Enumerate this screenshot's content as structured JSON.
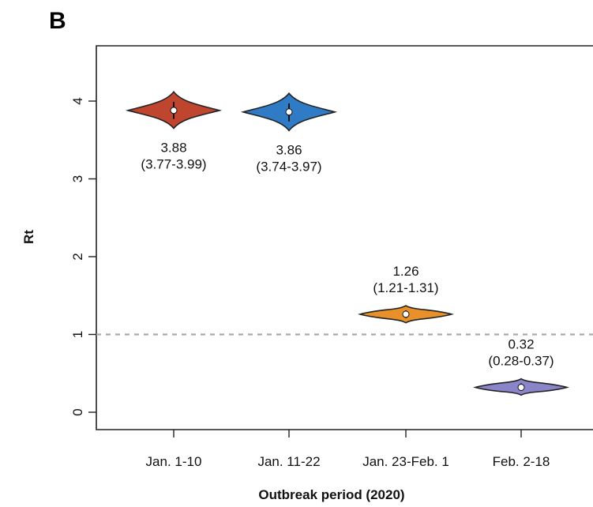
{
  "panel_label": "B",
  "chart_data": {
    "type": "violin",
    "xlabel": "Outbreak period (2020)",
    "ylabel": "Rt",
    "ylim": [
      -0.2,
      4.7
    ],
    "yticks": [
      0,
      1,
      2,
      3,
      4
    ],
    "reference_line": {
      "y": 1,
      "style": "dashed",
      "color": "#aaaaaa"
    },
    "grid": false,
    "categories": [
      "Jan. 1-10",
      "Jan. 11-22",
      "Jan. 23-Feb. 1",
      "Feb. 2-18"
    ],
    "series": [
      {
        "category": "Jan. 1-10",
        "median": 3.88,
        "ci": [
          3.77,
          3.99
        ],
        "label": "3.88",
        "ci_label": "(3.77-3.99)",
        "color": "#c0452e",
        "range": [
          3.65,
          4.12
        ]
      },
      {
        "category": "Jan. 11-22",
        "median": 3.86,
        "ci": [
          3.74,
          3.97
        ],
        "label": "3.86",
        "ci_label": "(3.74-3.97)",
        "color": "#2f7bc6",
        "range": [
          3.62,
          4.1
        ]
      },
      {
        "category": "Jan. 23-Feb. 1",
        "median": 1.26,
        "ci": [
          1.21,
          1.31
        ],
        "label": "1.26",
        "ci_label": "(1.21-1.31)",
        "color": "#e8902a",
        "range": [
          1.15,
          1.37
        ]
      },
      {
        "category": "Feb. 2-18",
        "median": 0.32,
        "ci": [
          0.28,
          0.37
        ],
        "label": "0.32",
        "ci_label": "(0.28-0.37)",
        "color": "#8a84c8",
        "range": [
          0.22,
          0.43
        ]
      }
    ]
  }
}
